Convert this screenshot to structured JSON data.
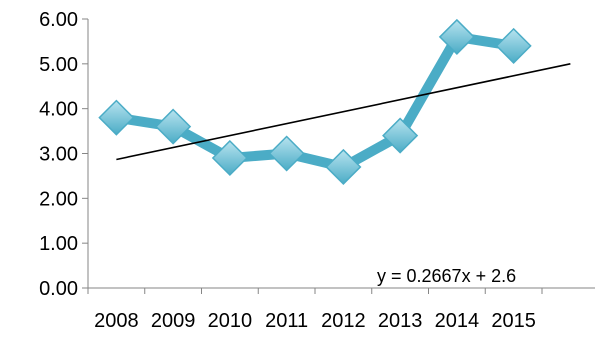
{
  "chart_data": {
    "type": "line",
    "title": "",
    "xlabel": "",
    "ylabel": "",
    "categories": [
      "2008",
      "2009",
      "2010",
      "2011",
      "2012",
      "2013",
      "2014",
      "2015"
    ],
    "series": [
      {
        "values": [
          3.8,
          3.6,
          2.9,
          3.0,
          2.7,
          3.4,
          5.6,
          5.4
        ]
      }
    ],
    "trendline": {
      "equation_label": "y = 0.2667x + 2.6",
      "slope": 0.2667,
      "intercept": 2.6
    },
    "ylim": [
      0,
      6
    ],
    "yticks": [
      "0.00",
      "1.00",
      "2.00",
      "3.00",
      "4.00",
      "5.00",
      "6.00"
    ],
    "grid": false,
    "legend": "none",
    "colors": {
      "series_line": "#4bacc6",
      "marker_fill": "#4bacc6",
      "marker_highlight": "#b7e3ef",
      "trendline": "#000000",
      "axis": "#868686"
    }
  }
}
